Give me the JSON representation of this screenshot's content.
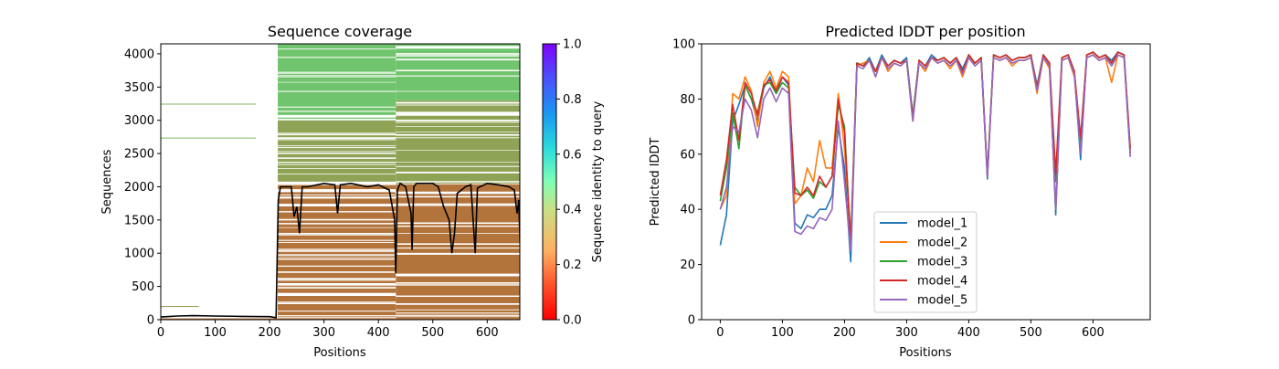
{
  "chart_data": [
    {
      "type": "heatmap",
      "title": "Sequence coverage",
      "xlabel": "Positions",
      "ylabel": "Sequences",
      "xlim": [
        0,
        660
      ],
      "ylim": [
        0,
        4150
      ],
      "xticks": [
        0,
        100,
        200,
        300,
        400,
        500,
        600
      ],
      "yticks": [
        0,
        500,
        1000,
        1500,
        2000,
        2500,
        3000,
        3500,
        4000
      ],
      "colorbar": {
        "label": "Sequence identity to query",
        "range": [
          0,
          1
        ],
        "ticks": [
          "0.0",
          "0.2",
          "0.4",
          "0.6",
          "0.8",
          "1.0"
        ],
        "colormap": "rainbow_r"
      },
      "blocks": [
        {
          "x": [
            0,
            215
          ],
          "y": [
            0,
            20
          ],
          "identity": 0.15
        },
        {
          "x": [
            0,
            70
          ],
          "y": [
            195,
            205
          ],
          "identity": 0.2
        },
        {
          "x": [
            0,
            175
          ],
          "y": [
            2730,
            2740
          ],
          "identity": 0.25
        },
        {
          "x": [
            0,
            175
          ],
          "y": [
            3240,
            3250
          ],
          "identity": 0.25
        },
        {
          "x": [
            215,
            432
          ],
          "y": [
            0,
            2050
          ],
          "identity": 0.15
        },
        {
          "x": [
            215,
            432
          ],
          "y": [
            2050,
            3000
          ],
          "identity": 0.22
        },
        {
          "x": [
            215,
            432
          ],
          "y": [
            3000,
            4150
          ],
          "identity": 0.28
        },
        {
          "x": [
            432,
            662
          ],
          "y": [
            0,
            2050
          ],
          "identity": 0.15
        },
        {
          "x": [
            432,
            662
          ],
          "y": [
            2050,
            3300
          ],
          "identity": 0.22
        },
        {
          "x": [
            432,
            662
          ],
          "y": [
            3300,
            4150
          ],
          "identity": 0.28
        }
      ],
      "coverage_line": {
        "color": "#000000",
        "x": [
          0,
          30,
          60,
          100,
          150,
          200,
          212,
          216,
          220,
          240,
          245,
          250,
          255,
          260,
          270,
          300,
          320,
          325,
          330,
          350,
          380,
          400,
          420,
          430,
          432,
          435,
          440,
          450,
          460,
          462,
          465,
          470,
          500,
          510,
          520,
          530,
          535,
          540,
          545,
          560,
          570,
          578,
          582,
          600,
          620,
          640,
          650,
          655,
          658,
          662
        ],
        "y": [
          40,
          55,
          60,
          55,
          50,
          45,
          30,
          1800,
          2000,
          2000,
          1550,
          1700,
          1300,
          2000,
          2000,
          2050,
          2030,
          1600,
          2030,
          2050,
          2000,
          2030,
          1950,
          1500,
          700,
          1950,
          2050,
          2000,
          1600,
          1050,
          2000,
          2050,
          2050,
          2000,
          1700,
          1500,
          1000,
          1300,
          1900,
          2000,
          2030,
          1000,
          1980,
          2050,
          2030,
          2000,
          1950,
          1600,
          1800,
          700
        ]
      }
    },
    {
      "type": "line",
      "title": "Predicted lDDT per position",
      "xlabel": "Positions",
      "ylabel": "Predicted lDDT",
      "xlim": [
        -30,
        692
      ],
      "ylim": [
        0,
        100
      ],
      "xticks": [
        0,
        100,
        200,
        300,
        400,
        500,
        600
      ],
      "yticks": [
        0,
        20,
        40,
        60,
        80,
        100
      ],
      "legend_position": "lower-center",
      "x": [
        0,
        10,
        20,
        30,
        40,
        50,
        60,
        70,
        80,
        90,
        100,
        110,
        120,
        130,
        140,
        150,
        160,
        170,
        180,
        190,
        200,
        210,
        220,
        230,
        240,
        250,
        260,
        270,
        280,
        290,
        300,
        310,
        320,
        330,
        340,
        350,
        360,
        370,
        380,
        390,
        400,
        410,
        420,
        430,
        440,
        450,
        460,
        470,
        480,
        490,
        500,
        510,
        520,
        530,
        540,
        550,
        560,
        570,
        580,
        590,
        600,
        610,
        620,
        630,
        640,
        650,
        660
      ],
      "series": [
        {
          "name": "model_1",
          "color": "#1f77b4",
          "values": [
            27,
            38,
            72,
            78,
            85,
            80,
            72,
            84,
            88,
            82,
            88,
            85,
            35,
            33,
            38,
            37,
            40,
            40,
            45,
            70,
            55,
            21,
            93,
            92,
            95,
            90,
            96,
            92,
            94,
            93,
            95,
            74,
            94,
            92,
            96,
            94,
            95,
            93,
            95,
            91,
            96,
            93,
            95,
            51,
            96,
            95,
            96,
            94,
            95,
            95,
            96,
            85,
            96,
            93,
            38,
            95,
            96,
            90,
            58,
            96,
            97,
            95,
            96,
            94,
            97,
            96,
            60
          ]
        },
        {
          "name": "model_2",
          "color": "#ff7f0e",
          "values": [
            40,
            45,
            82,
            80,
            88,
            83,
            70,
            86,
            90,
            84,
            90,
            88,
            42,
            45,
            55,
            50,
            65,
            55,
            55,
            82,
            62,
            30,
            92,
            93,
            94,
            88,
            95,
            90,
            93,
            92,
            94,
            72,
            93,
            90,
            95,
            93,
            94,
            91,
            94,
            88,
            95,
            92,
            94,
            53,
            95,
            94,
            95,
            92,
            94,
            94,
            95,
            82,
            95,
            91,
            40,
            94,
            95,
            88,
            62,
            95,
            96,
            94,
            95,
            86,
            96,
            95,
            60
          ]
        },
        {
          "name": "model_3",
          "color": "#2ca02c",
          "values": [
            43,
            55,
            75,
            62,
            85,
            80,
            75,
            85,
            86,
            82,
            86,
            84,
            48,
            45,
            47,
            44,
            50,
            48,
            52,
            78,
            70,
            27,
            93,
            92,
            94,
            90,
            95,
            92,
            94,
            93,
            94,
            74,
            94,
            92,
            95,
            94,
            95,
            93,
            95,
            90,
            96,
            93,
            95,
            53,
            96,
            95,
            96,
            94,
            95,
            95,
            96,
            84,
            96,
            93,
            50,
            95,
            96,
            90,
            64,
            96,
            97,
            95,
            96,
            93,
            97,
            96,
            62
          ]
        },
        {
          "name": "model_4",
          "color": "#d62728",
          "values": [
            45,
            58,
            78,
            65,
            86,
            82,
            74,
            85,
            87,
            83,
            88,
            86,
            46,
            45,
            48,
            45,
            52,
            48,
            52,
            80,
            68,
            28,
            93,
            92,
            94,
            90,
            95,
            92,
            94,
            93,
            94,
            73,
            94,
            92,
            95,
            94,
            95,
            93,
            95,
            90,
            96,
            93,
            95,
            52,
            96,
            95,
            96,
            94,
            95,
            95,
            96,
            84,
            96,
            93,
            53,
            95,
            96,
            90,
            66,
            96,
            97,
            95,
            96,
            93,
            97,
            96,
            62
          ]
        },
        {
          "name": "model_5",
          "color": "#9467bd",
          "values": [
            40,
            48,
            70,
            68,
            80,
            76,
            66,
            80,
            84,
            79,
            84,
            82,
            32,
            31,
            34,
            33,
            37,
            36,
            40,
            72,
            50,
            25,
            92,
            91,
            94,
            88,
            95,
            91,
            93,
            92,
            94,
            72,
            93,
            91,
            95,
            93,
            94,
            92,
            94,
            89,
            95,
            92,
            94,
            52,
            95,
            94,
            95,
            93,
            94,
            94,
            95,
            83,
            95,
            92,
            40,
            94,
            95,
            89,
            60,
            95,
            96,
            94,
            95,
            92,
            96,
            95,
            59
          ]
        }
      ]
    }
  ]
}
